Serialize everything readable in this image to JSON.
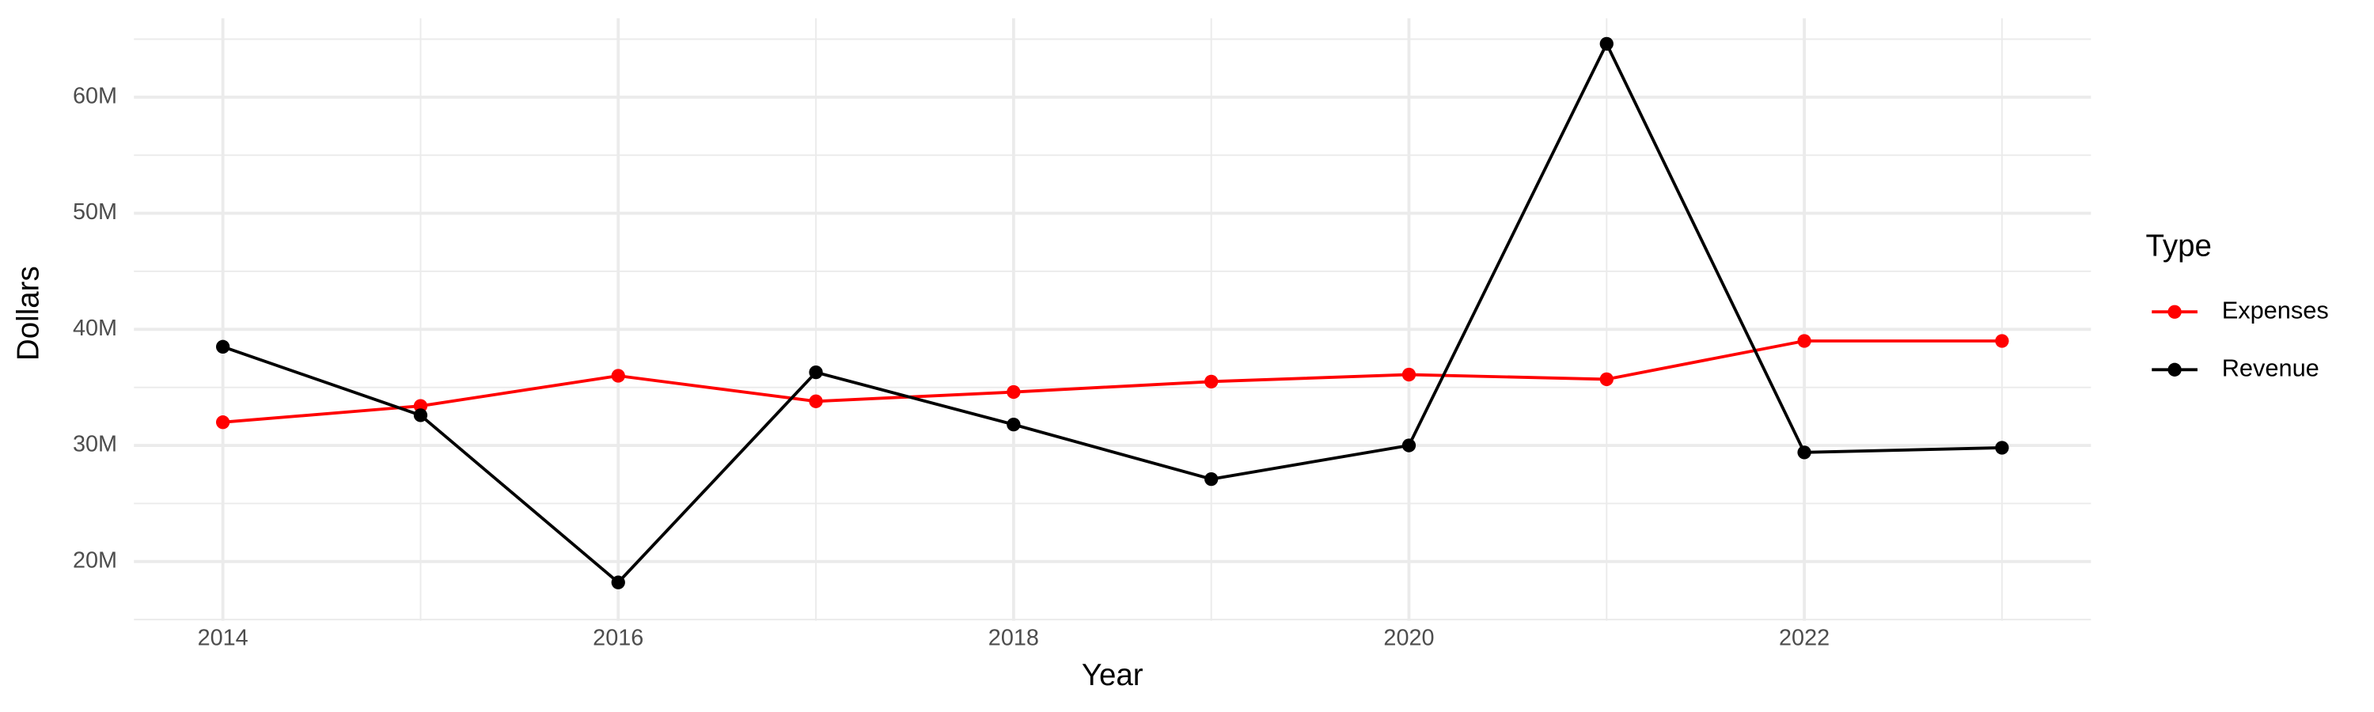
{
  "chart_data": {
    "type": "line",
    "x_label": "Year",
    "y_label": "Dollars",
    "legend_title": "Type",
    "legend_position": "right",
    "grid": true,
    "x": [
      2014,
      2015,
      2016,
      2017,
      2018,
      2019,
      2020,
      2021,
      2022,
      2023
    ],
    "series": [
      {
        "name": "Expenses",
        "color": "#ff0000",
        "values": [
          32000000,
          33400000,
          36000000,
          33800000,
          34600000,
          35500000,
          36100000,
          35700000,
          39000000,
          39000000
        ]
      },
      {
        "name": "Revenue",
        "color": "#000000",
        "values": [
          38500000,
          32600000,
          18200000,
          36300000,
          31800000,
          27100000,
          30000000,
          64600000,
          29400000,
          29800000
        ]
      }
    ],
    "xlim": [
      2013.55,
      2023.45
    ],
    "xticks": [
      2014,
      2016,
      2018,
      2020,
      2022
    ],
    "ylim": [
      14900000,
      66800000
    ],
    "yticks": [
      {
        "value": 20000000,
        "label": "20M"
      },
      {
        "value": 30000000,
        "label": "30M"
      },
      {
        "value": 40000000,
        "label": "40M"
      },
      {
        "value": 50000000,
        "label": "50M"
      },
      {
        "value": 60000000,
        "label": "60M"
      }
    ]
  }
}
